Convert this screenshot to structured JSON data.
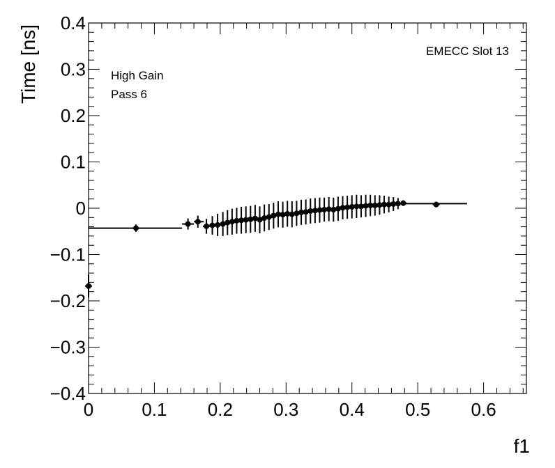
{
  "chart_data": {
    "type": "scatter",
    "title": "",
    "xlabel": "f1",
    "ylabel": "Time [ns]",
    "xlim": [
      0,
      0.665
    ],
    "ylim": [
      -0.4,
      0.4
    ],
    "x_ticks": [
      0,
      0.1,
      0.2,
      0.3,
      0.4,
      0.5,
      0.6
    ],
    "x_tick_labels": [
      "0",
      "0.1",
      "0.2",
      "0.3",
      "0.4",
      "0.5",
      "0.6"
    ],
    "y_ticks": [
      -0.4,
      -0.3,
      -0.2,
      -0.1,
      0,
      0.1,
      0.2,
      0.3,
      0.4
    ],
    "y_tick_labels": [
      "−0.4",
      "−0.3",
      "−0.2",
      "−0.1",
      "0",
      "0.1",
      "0.2",
      "0.3",
      "0.4"
    ],
    "grid": false,
    "annotations": {
      "slot": "EMECC Slot 13",
      "gain": "High Gain",
      "pass": "Pass 6"
    },
    "series": [
      {
        "points": [
          {
            "x": 0.0,
            "y": -0.168,
            "err": 0.025
          },
          {
            "x": 0.072,
            "y": -0.043,
            "err": 0.008
          },
          {
            "x": 0.151,
            "y": -0.034,
            "err": 0.012
          },
          {
            "x": 0.166,
            "y": -0.029,
            "err": 0.013
          },
          {
            "x": 0.179,
            "y": -0.039,
            "err": 0.016
          },
          {
            "x": 0.188,
            "y": -0.037,
            "err": 0.02
          },
          {
            "x": 0.196,
            "y": -0.036,
            "err": 0.024
          },
          {
            "x": 0.204,
            "y": -0.034,
            "err": 0.026
          },
          {
            "x": 0.211,
            "y": -0.031,
            "err": 0.027
          },
          {
            "x": 0.218,
            "y": -0.029,
            "err": 0.028
          },
          {
            "x": 0.225,
            "y": -0.027,
            "err": 0.028
          },
          {
            "x": 0.232,
            "y": -0.026,
            "err": 0.029
          },
          {
            "x": 0.239,
            "y": -0.025,
            "err": 0.029
          },
          {
            "x": 0.246,
            "y": -0.024,
            "err": 0.029
          },
          {
            "x": 0.253,
            "y": -0.022,
            "err": 0.029
          },
          {
            "x": 0.26,
            "y": -0.025,
            "err": 0.029
          },
          {
            "x": 0.267,
            "y": -0.021,
            "err": 0.029
          },
          {
            "x": 0.274,
            "y": -0.019,
            "err": 0.028
          },
          {
            "x": 0.281,
            "y": -0.016,
            "err": 0.028
          },
          {
            "x": 0.288,
            "y": -0.013,
            "err": 0.028
          },
          {
            "x": 0.295,
            "y": -0.014,
            "err": 0.028
          },
          {
            "x": 0.302,
            "y": -0.012,
            "err": 0.028
          },
          {
            "x": 0.309,
            "y": -0.013,
            "err": 0.028
          },
          {
            "x": 0.316,
            "y": -0.011,
            "err": 0.027
          },
          {
            "x": 0.323,
            "y": -0.009,
            "err": 0.027
          },
          {
            "x": 0.33,
            "y": -0.008,
            "err": 0.027
          },
          {
            "x": 0.337,
            "y": -0.006,
            "err": 0.027
          },
          {
            "x": 0.344,
            "y": -0.005,
            "err": 0.027
          },
          {
            "x": 0.351,
            "y": -0.004,
            "err": 0.027
          },
          {
            "x": 0.358,
            "y": -0.003,
            "err": 0.026
          },
          {
            "x": 0.365,
            "y": -0.002,
            "err": 0.026
          },
          {
            "x": 0.372,
            "y": -0.003,
            "err": 0.026
          },
          {
            "x": 0.379,
            "y": -0.001,
            "err": 0.026
          },
          {
            "x": 0.386,
            "y": 0.001,
            "err": 0.025
          },
          {
            "x": 0.393,
            "y": 0.002,
            "err": 0.025
          },
          {
            "x": 0.4,
            "y": 0.003,
            "err": 0.025
          },
          {
            "x": 0.407,
            "y": 0.004,
            "err": 0.025
          },
          {
            "x": 0.414,
            "y": 0.004,
            "err": 0.024
          },
          {
            "x": 0.421,
            "y": 0.005,
            "err": 0.024
          },
          {
            "x": 0.428,
            "y": 0.006,
            "err": 0.023
          },
          {
            "x": 0.435,
            "y": 0.006,
            "err": 0.022
          },
          {
            "x": 0.442,
            "y": 0.007,
            "err": 0.021
          },
          {
            "x": 0.449,
            "y": 0.008,
            "err": 0.019
          },
          {
            "x": 0.456,
            "y": 0.008,
            "err": 0.017
          },
          {
            "x": 0.463,
            "y": 0.009,
            "err": 0.015
          },
          {
            "x": 0.47,
            "y": 0.01,
            "err": 0.012
          },
          {
            "x": 0.478,
            "y": 0.011,
            "err": 0.006
          },
          {
            "x": 0.528,
            "y": 0.008,
            "err": 0.006
          }
        ],
        "steps": [
          {
            "x0": 0.0,
            "x1": 0.142,
            "y": -0.043
          },
          {
            "x0": 0.142,
            "x1": 0.16,
            "y": -0.034
          },
          {
            "x0": 0.16,
            "x1": 0.175,
            "y": -0.029
          },
          {
            "x0": 0.478,
            "x1": 0.575,
            "y": 0.01
          }
        ]
      }
    ]
  }
}
